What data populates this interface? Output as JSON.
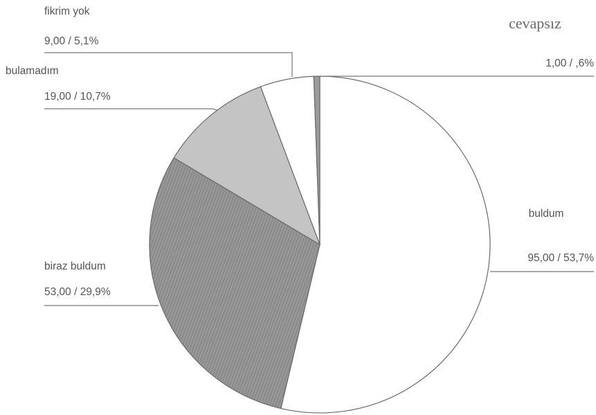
{
  "chart_data": {
    "type": "pie",
    "title": "",
    "slices": [
      {
        "label": "buldum",
        "value": 95.0,
        "value_text": "95,00 / 53,7%",
        "percent": 53.7,
        "color": "#ffffff"
      },
      {
        "label": "biraz buldum",
        "value": 53.0,
        "value_text": "53,00 / 29,9%",
        "percent": 29.9,
        "color": "#8a8a8a"
      },
      {
        "label": "bulamadım",
        "value": 19.0,
        "value_text": "19,00 / 10,7%",
        "percent": 10.7,
        "color": "#c4c4c4"
      },
      {
        "label": "fikrim yok",
        "value": 9.0,
        "value_text": "9,00 / 5,1%",
        "percent": 5.1,
        "color": "#ffffff"
      },
      {
        "label": "cevapsız",
        "value": 1.0,
        "value_text": "1,00 / ,6%",
        "percent": 0.6,
        "color": "#9a9a9a"
      }
    ],
    "legend": "none"
  }
}
